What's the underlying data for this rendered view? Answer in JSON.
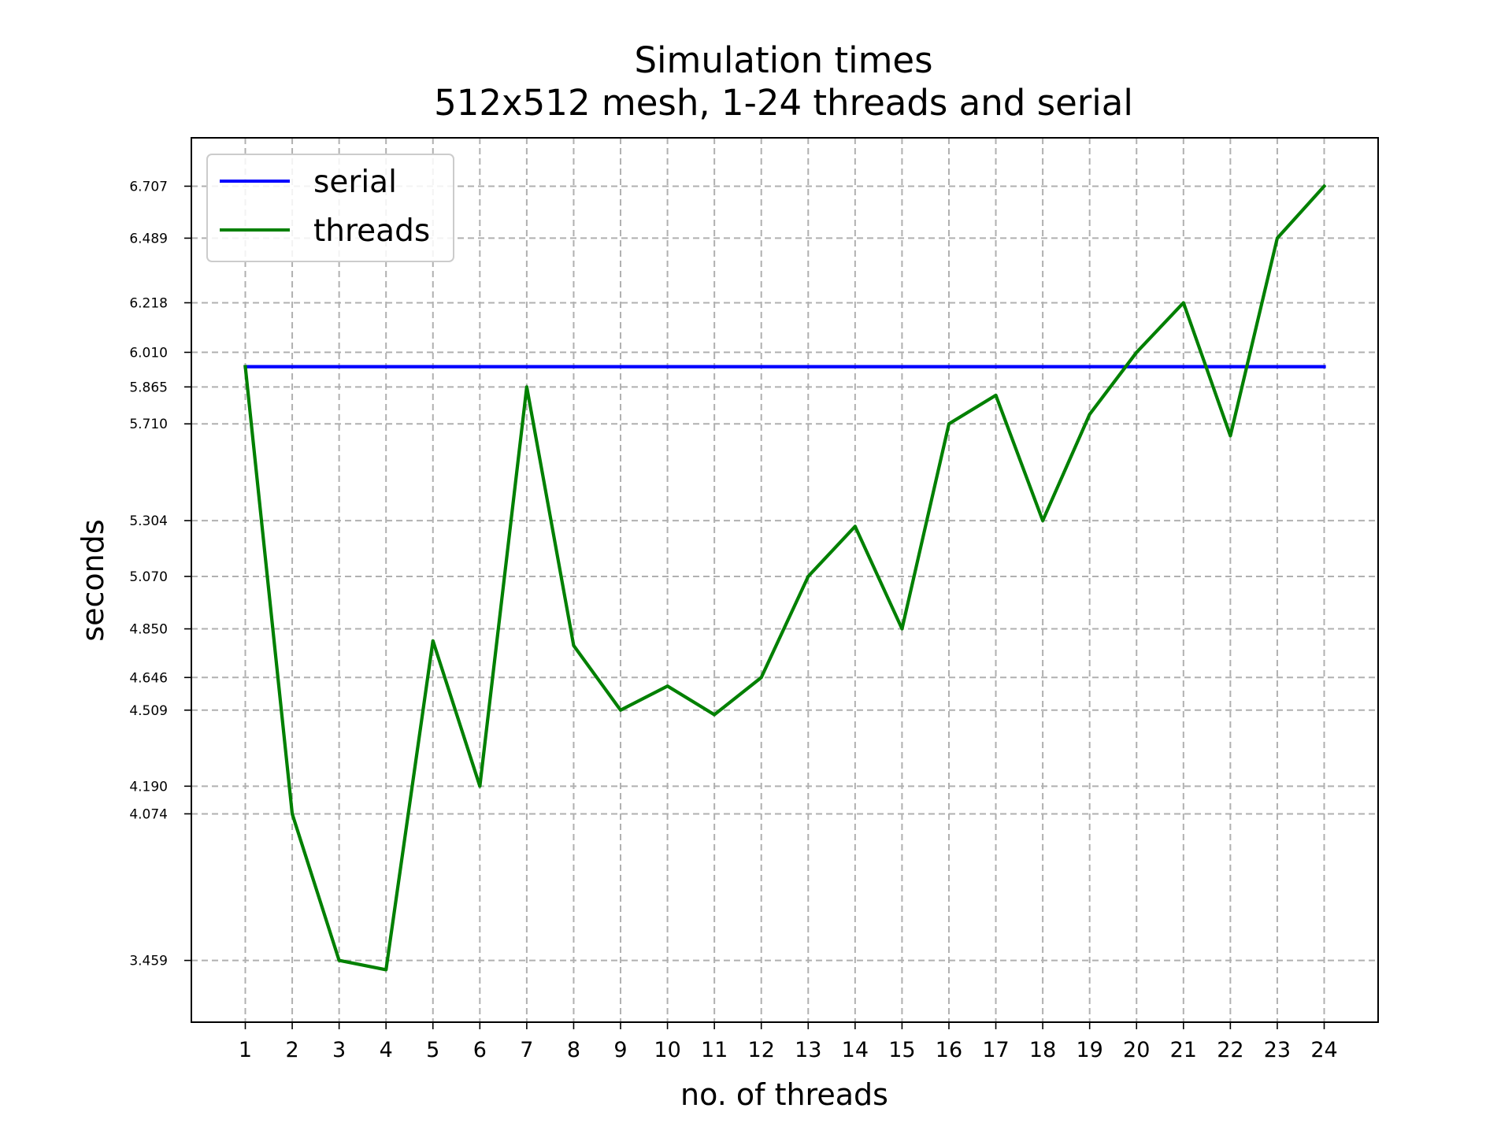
{
  "chart_data": {
    "type": "line",
    "title": "Simulation times",
    "subtitle": "512x512 mesh, 1-24 threads and serial",
    "xlabel": "no. of threads",
    "ylabel": "seconds",
    "x": [
      1,
      2,
      3,
      4,
      5,
      6,
      7,
      8,
      9,
      10,
      11,
      12,
      13,
      14,
      15,
      16,
      17,
      18,
      19,
      20,
      21,
      22,
      23,
      24
    ],
    "xlim": [
      -0.15,
      25.15
    ],
    "ylim": [
      3.2,
      6.91
    ],
    "yticks": [
      "3.459",
      "4.074",
      "4.190",
      "4.509",
      "4.646",
      "4.850",
      "5.070",
      "5.304",
      "5.710",
      "5.865",
      "6.010",
      "6.218",
      "6.489",
      "6.707"
    ],
    "grid": true,
    "legend_position": "upper left",
    "series": [
      {
        "name": "serial",
        "color": "#0000ff",
        "values": [
          5.95,
          5.95,
          5.95,
          5.95,
          5.95,
          5.95,
          5.95,
          5.95,
          5.95,
          5.95,
          5.95,
          5.95,
          5.95,
          5.95,
          5.95,
          5.95,
          5.95,
          5.95,
          5.95,
          5.95,
          5.95,
          5.95,
          5.95,
          5.95
        ]
      },
      {
        "name": "threads",
        "color": "#008000",
        "values": [
          5.95,
          4.074,
          3.459,
          3.42,
          4.8,
          4.19,
          5.865,
          4.78,
          4.509,
          4.61,
          4.49,
          4.646,
          5.07,
          5.28,
          4.85,
          5.71,
          5.83,
          5.304,
          5.75,
          6.01,
          6.218,
          5.66,
          6.489,
          6.707
        ]
      }
    ]
  }
}
